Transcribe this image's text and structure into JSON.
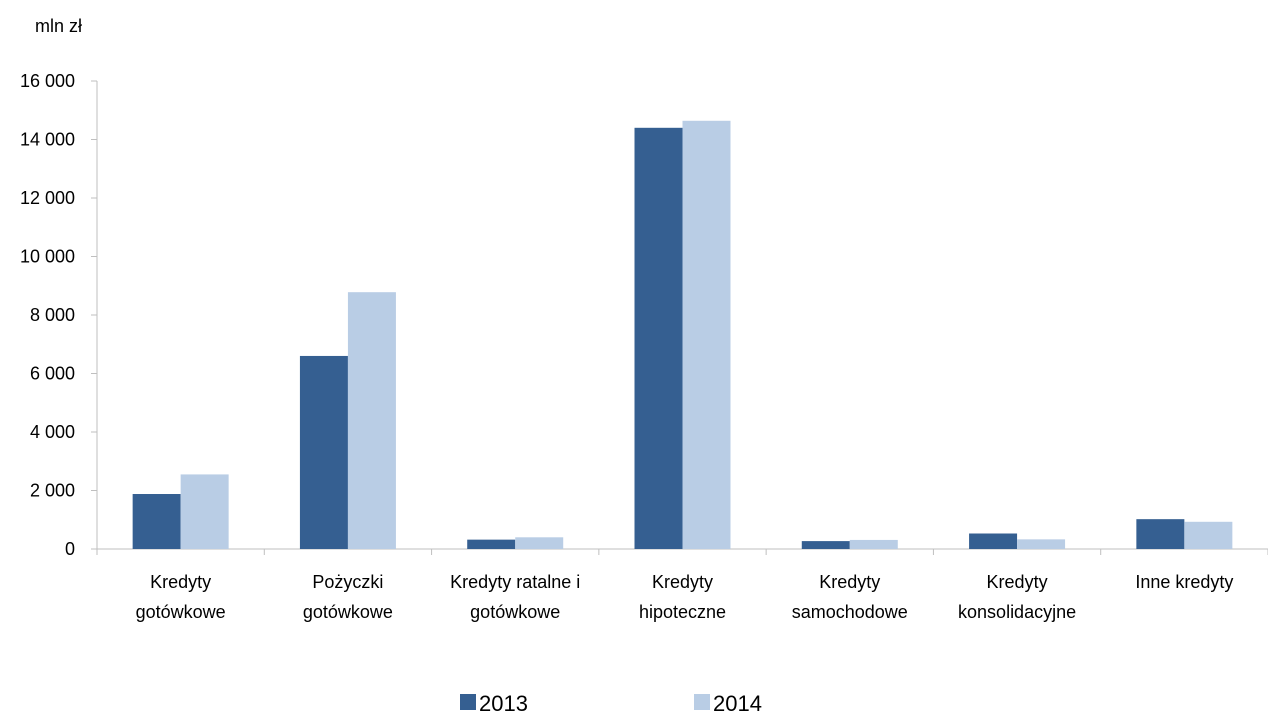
{
  "chart_data": {
    "type": "bar",
    "unit_label": "mln zł",
    "categories": [
      [
        "Kredyty",
        "gotówkowe"
      ],
      [
        "Pożyczki",
        "gotówkowe"
      ],
      [
        "Kredyty ratalne i",
        "gotówkowe"
      ],
      [
        "Kredyty",
        "hipoteczne"
      ],
      [
        "Kredyty",
        "samochodowe"
      ],
      [
        "Kredyty",
        "konsolidacyjne"
      ],
      [
        "Inne kredyty"
      ]
    ],
    "series": [
      {
        "name": "2013",
        "color": "#355F91",
        "values": [
          1880,
          6600,
          320,
          14400,
          270,
          530,
          1020
        ]
      },
      {
        "name": "2014",
        "color": "#B9CDE5",
        "values": [
          2550,
          8780,
          400,
          14640,
          310,
          330,
          930
        ]
      }
    ],
    "ylim": [
      0,
      16000
    ],
    "yticks": [
      0,
      2000,
      4000,
      6000,
      8000,
      10000,
      12000,
      14000,
      16000
    ],
    "ytick_labels": [
      "0",
      "2 000",
      "4 000",
      "6 000",
      "8 000",
      "10 000",
      "12 000",
      "14 000",
      "16 000"
    ],
    "grid": false,
    "legend_position": "bottom-center"
  }
}
